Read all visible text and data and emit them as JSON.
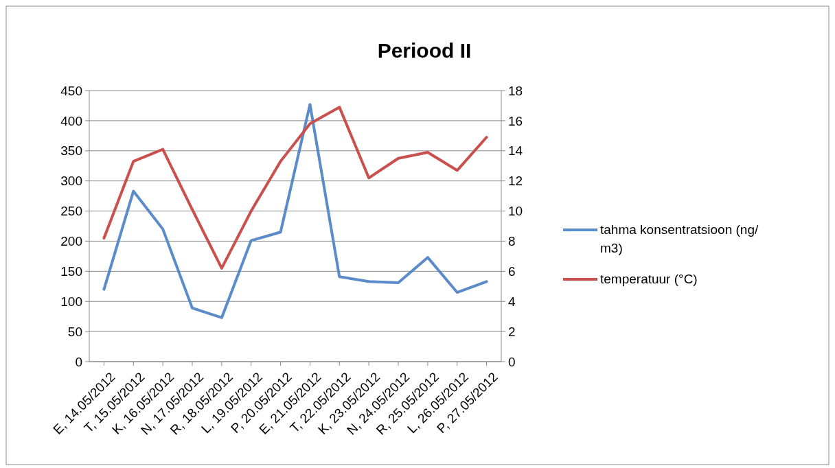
{
  "chart_data": {
    "type": "line",
    "title": "Periood II",
    "categories": [
      "E, 14.05/2012",
      "T, 15.05/2012",
      "K, 16.05/2012",
      "N, 17.05/2012",
      "R, 18.05/2012",
      "L, 19.05/2012",
      "P, 20.05/2012",
      "E, 21.05/2012",
      "T, 22.05/2012",
      "K, 23.05/2012",
      "N, 24.05/2012",
      "R, 25.05/2012",
      "L, 26.05/2012",
      "P, 27.05/2012"
    ],
    "series": [
      {
        "name": "tahma konsentratsioon (ng/m3)",
        "color": "#5b8bc8",
        "values": [
          120,
          283,
          220,
          89,
          73,
          201,
          215,
          427,
          141,
          133,
          131,
          173,
          115,
          133
        ]
      },
      {
        "name": "temperatuur (°C)",
        "color": "#c9504d",
        "axis": "y2",
        "values": [
          8.2,
          13.3,
          14.1,
          10.1,
          6.2,
          10.0,
          13.3,
          15.8,
          16.9,
          12.2,
          13.5,
          13.9,
          12.7,
          14.9
        ]
      }
    ],
    "ylim": [
      0,
      450
    ],
    "yticks": [
      0,
      50,
      100,
      150,
      200,
      250,
      300,
      350,
      400,
      450
    ],
    "y2lim": [
      0,
      18
    ],
    "y2ticks": [
      0,
      2,
      4,
      6,
      8,
      10,
      12,
      14,
      16,
      18
    ],
    "grid": "y",
    "legend": "right",
    "marker": "none",
    "line_style": "solid"
  }
}
